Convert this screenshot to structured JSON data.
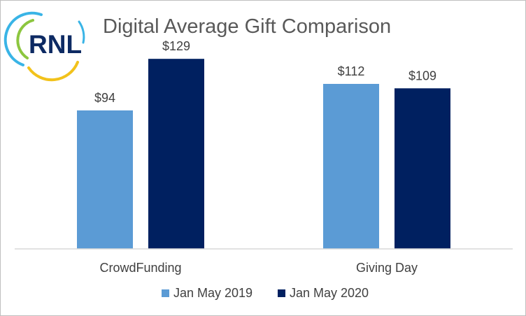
{
  "logo": {
    "text": "RNL"
  },
  "chart_data": {
    "type": "bar",
    "title": "Digital Average Gift Comparison",
    "categories": [
      "CrowdFunding",
      "Giving Day"
    ],
    "series": [
      {
        "name": "Jan May 2019",
        "color": "#5b9bd5",
        "values": [
          94,
          112
        ],
        "labels": [
          "$94",
          "$112"
        ]
      },
      {
        "name": "Jan May 2020",
        "color": "#002060",
        "values": [
          129,
          109
        ],
        "labels": [
          "$129",
          "$109"
        ]
      }
    ],
    "xlabel": "",
    "ylabel": "",
    "ylim": [
      0,
      140
    ],
    "grid": false,
    "legend_position": "bottom"
  }
}
